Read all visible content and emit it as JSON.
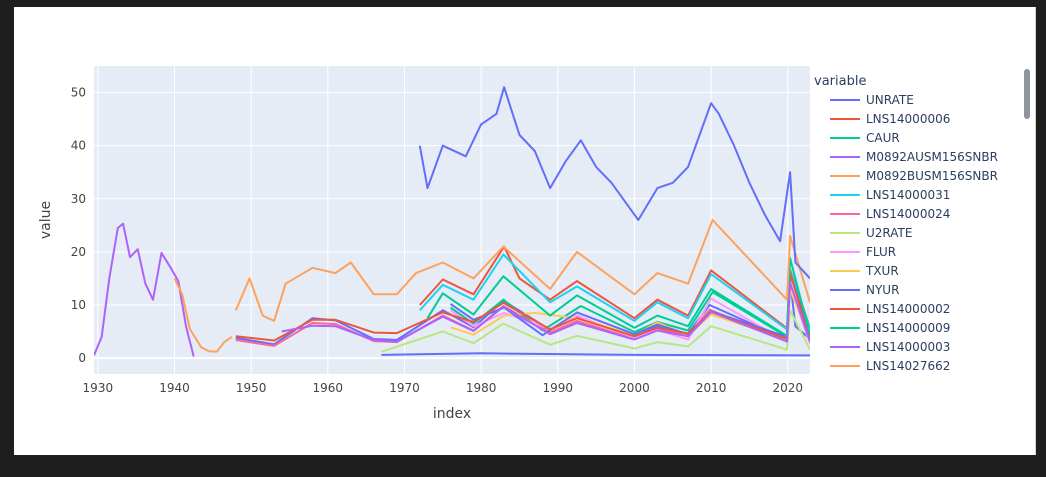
{
  "chart_data": {
    "type": "line",
    "xlabel": "index",
    "ylabel": "value",
    "xlim": [
      1929.5,
      2022.9
    ],
    "ylim": [
      -3,
      55
    ],
    "x_ticks": [
      1930,
      1940,
      1950,
      1960,
      1970,
      1980,
      1990,
      2000,
      2010,
      2020
    ],
    "y_ticks": [
      0,
      10,
      20,
      30,
      40,
      50
    ],
    "grid": true,
    "legend_title": "variable",
    "legend_placement": "right",
    "series": [
      {
        "name": "UNRATE",
        "color": "#636efa",
        "x": [
          1948,
          1953,
          1958,
          1961,
          1966,
          1969,
          1975,
          1979,
          1982.9,
          1989,
          1992.5,
          2000,
          2003,
          2007,
          2009.8,
          2019.9,
          2020.3,
          2021,
          2022.9
        ],
        "y": [
          3.8,
          2.6,
          7.5,
          7.1,
          3.6,
          3.4,
          9.0,
          5.8,
          10.8,
          5.3,
          7.7,
          4.0,
          6.0,
          4.6,
          10.0,
          3.5,
          14.7,
          6.0,
          3.6
        ]
      },
      {
        "name": "LNS14000006",
        "color": "#ef553b",
        "x": [
          1972,
          1975,
          1979,
          1983,
          1985,
          1989,
          1992.5,
          2000,
          2003,
          2007,
          2010,
          2019.9,
          2020.3,
          2022.9
        ],
        "y": [
          10.0,
          14.8,
          12.0,
          21.0,
          15.0,
          11.0,
          14.5,
          7.5,
          11.0,
          8.0,
          16.5,
          5.6,
          16.7,
          5.7
        ]
      },
      {
        "name": "CAUR",
        "color": "#00cc96",
        "x": [
          1976,
          1979,
          1982.9,
          1988,
          1993,
          2000,
          2003,
          2007,
          2010.2,
          2019.9,
          2020.3,
          2022.9
        ],
        "y": [
          9.5,
          6.5,
          11.0,
          5.2,
          9.8,
          4.9,
          6.8,
          5.2,
          12.4,
          4.0,
          16.0,
          4.4
        ]
      },
      {
        "name": "M0892AUSM156SNBR",
        "color": "#ab63fa",
        "x": [
          1929.5,
          1930.5,
          1931.5,
          1932.6,
          1933.3,
          1934.2,
          1935.2,
          1936.2,
          1937.2,
          1938.3,
          1939.5,
          1940.5,
          1941.5,
          1942.5
        ],
        "y": [
          0.5,
          4.0,
          15.0,
          24.5,
          25.3,
          19.0,
          20.5,
          14.0,
          11.0,
          19.8,
          17.0,
          14.5,
          6.0,
          0.3
        ]
      },
      {
        "name": "M0892BUSM156SNBR",
        "color": "#ffa15a",
        "x": [
          1940,
          1941,
          1942,
          1943.5,
          1944.5,
          1945.5,
          1946.5,
          1947.5
        ],
        "y": [
          15.0,
          12.0,
          5.5,
          2.0,
          1.3,
          1.2,
          3.0,
          4.0
        ]
      },
      {
        "name": "LNS14000031",
        "color": "#19d3f3",
        "x": [
          1972,
          1975,
          1979,
          1982.9,
          1989,
          1992.5,
          2000,
          2003,
          2007,
          2010,
          2019.9,
          2020.3,
          2022.9
        ],
        "y": [
          9.0,
          13.8,
          11.0,
          19.5,
          10.5,
          13.5,
          7.0,
          10.5,
          7.5,
          15.8,
          5.4,
          16.5,
          5.6
        ]
      },
      {
        "name": "LNS14000024",
        "color": "#ff6692",
        "x": [
          1948,
          1953,
          1958,
          1961,
          1966,
          1969,
          1975,
          1979,
          1982.9,
          1989,
          1992.5,
          2000,
          2003,
          2007,
          2009.8,
          2019.9,
          2020.3,
          2022.9
        ],
        "y": [
          3.4,
          2.3,
          6.6,
          6.4,
          3.2,
          3.0,
          8.0,
          5.2,
          9.8,
          4.8,
          7.0,
          3.6,
          5.4,
          4.2,
          9.1,
          3.2,
          13.2,
          3.3
        ]
      },
      {
        "name": "U2RATE",
        "color": "#b6e880",
        "x": [
          1967,
          1975,
          1979,
          1982.9,
          1989,
          1992.5,
          2000,
          2003,
          2007,
          2010,
          2019.9,
          2020.3,
          2022.9
        ],
        "y": [
          1.2,
          5.0,
          2.8,
          6.5,
          2.5,
          4.2,
          1.8,
          3.0,
          2.2,
          6.0,
          1.6,
          9.0,
          1.6
        ]
      },
      {
        "name": "FLUR",
        "color": "#ff97ff",
        "x": [
          1976,
          1979,
          1983,
          1989,
          1992.5,
          2000,
          2003,
          2007,
          2010,
          2019.9,
          2020.3,
          2022.9
        ],
        "y": [
          9.0,
          6.0,
          8.5,
          5.5,
          8.0,
          3.8,
          5.3,
          3.5,
          11.2,
          3.1,
          13.5,
          2.7
        ]
      },
      {
        "name": "TXUR",
        "color": "#fecb52",
        "x": [
          1976,
          1979,
          1983,
          1987,
          1992.5,
          2000,
          2003,
          2007,
          2010,
          2019.9,
          2020.3,
          2022.9
        ],
        "y": [
          5.8,
          4.4,
          8.0,
          8.5,
          7.5,
          4.3,
          6.7,
          4.3,
          8.2,
          3.5,
          12.8,
          4.0
        ]
      },
      {
        "name": "NYUR",
        "color": "#636efa",
        "x": [
          1976,
          1979,
          1983,
          1988,
          1992.5,
          2000,
          2003,
          2007,
          2010,
          2019.9,
          2020.3,
          2022.9
        ],
        "y": [
          10.2,
          7.2,
          9.5,
          4.3,
          8.6,
          4.5,
          6.3,
          4.5,
          8.8,
          4.0,
          16.0,
          4.2
        ]
      },
      {
        "name": "LNS14000002",
        "color": "#ef553b",
        "x": [
          1948,
          1953,
          1958,
          1961,
          1966,
          1969,
          1975,
          1979,
          1982.9,
          1989,
          1992.5,
          2000,
          2003,
          2007,
          2010,
          2019.9,
          2020.3,
          2022.9
        ],
        "y": [
          4.1,
          3.3,
          7.2,
          7.2,
          4.8,
          4.7,
          8.6,
          6.8,
          10.4,
          5.4,
          7.5,
          4.1,
          5.7,
          4.6,
          8.7,
          3.6,
          16.0,
          3.5
        ]
      },
      {
        "name": "LNS14000009",
        "color": "#00cc96",
        "x": [
          1973,
          1975,
          1979,
          1982.9,
          1989,
          1992.5,
          2000,
          2003,
          2007,
          2010,
          2019.9,
          2020.3,
          2022.9
        ],
        "y": [
          7.5,
          12.2,
          8.2,
          15.4,
          8.0,
          11.8,
          5.7,
          8.0,
          6.0,
          13.0,
          4.2,
          18.8,
          4.4
        ]
      },
      {
        "name": "LNS14000003",
        "color": "#ab63fa",
        "x": [
          1954,
          1958,
          1961,
          1966,
          1969,
          1975,
          1979,
          1982.9,
          1989,
          1992.5,
          2000,
          2003,
          2007,
          2010,
          2019.9,
          2020.3,
          2022.9
        ],
        "y": [
          5.0,
          6.1,
          6.0,
          3.4,
          3.1,
          7.8,
          5.1,
          9.7,
          4.5,
          6.6,
          3.5,
          5.2,
          4.1,
          8.7,
          3.1,
          14.2,
          3.1
        ]
      },
      {
        "name": "LNS14027662",
        "color": "#ffa15a",
        "x": [
          1948,
          1949.8,
          1951.5,
          1953,
          1954.5,
          1958,
          1961,
          1963,
          1966,
          1969,
          1971.5,
          1975,
          1979,
          1982.9,
          1989,
          1992.5,
          2000,
          2003,
          2007,
          2010.2,
          2019.9,
          2020.3,
          2022.9
        ],
        "y": [
          9.0,
          15.0,
          8.0,
          7.0,
          14.0,
          17.0,
          16.0,
          18.0,
          12.0,
          12.0,
          16.0,
          18.0,
          15.0,
          21.0,
          13.0,
          20.0,
          12.0,
          16.0,
          14.0,
          26.0,
          11.0,
          23.0,
          10.5
        ]
      },
      {
        "name": "",
        "color": "#636efa",
        "x": [
          1972,
          1973,
          1975,
          1978,
          1980,
          1982,
          1983,
          1985,
          1987,
          1989,
          1991,
          1993,
          1995,
          1997,
          1999,
          2000.5,
          2003,
          2005,
          2007,
          2009,
          2010,
          2011,
          2013,
          2015,
          2017,
          2019,
          2020.3,
          2021,
          2022.9
        ],
        "y": [
          40,
          32,
          40,
          38,
          44,
          46,
          51,
          42,
          39,
          32,
          37,
          41,
          36,
          33,
          29,
          26,
          32,
          33,
          36,
          44,
          48,
          46,
          40,
          33,
          27,
          22,
          35,
          18,
          15
        ]
      },
      {
        "name": "",
        "color": "#636efa",
        "x": [
          1967,
          1980,
          2000,
          2022.9
        ],
        "y": [
          0.6,
          0.9,
          0.6,
          0.5
        ]
      }
    ]
  }
}
